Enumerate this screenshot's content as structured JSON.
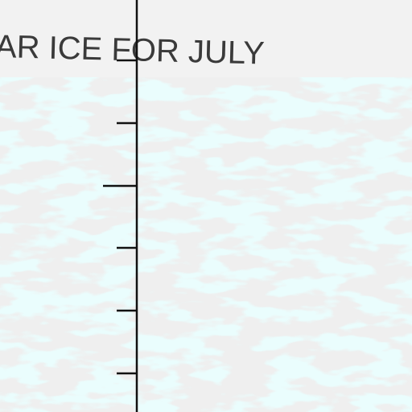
{
  "map": {
    "title": "AR ICE FOR JULY"
  }
}
